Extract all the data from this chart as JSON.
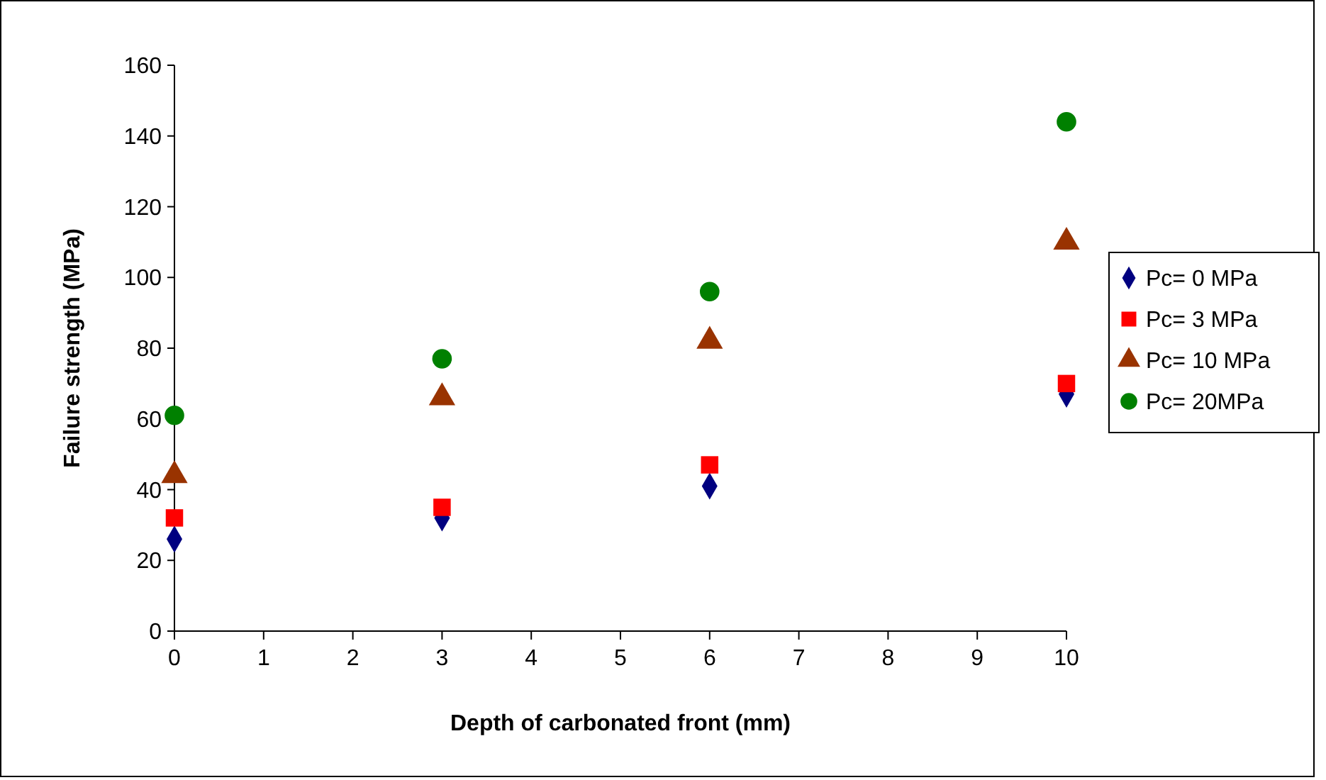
{
  "chart_data": {
    "type": "scatter",
    "xlabel": "Depth of carbonated front (mm)",
    "ylabel": "Failure strength (MPa)",
    "xlim": [
      0,
      10
    ],
    "xticks": [
      0,
      1,
      2,
      3,
      4,
      5,
      6,
      7,
      8,
      9,
      10
    ],
    "ylim": [
      0,
      160
    ],
    "yticks": [
      0,
      20,
      40,
      60,
      80,
      100,
      120,
      140,
      160
    ],
    "grid": false,
    "legend": "right",
    "series": [
      {
        "name": "Pc= 0 MPa",
        "color": "#000080",
        "marker": "diamond",
        "x": [
          0,
          3,
          6,
          10
        ],
        "values": [
          26,
          32,
          41,
          67
        ]
      },
      {
        "name": "Pc= 3 MPa",
        "color": "#ff0000",
        "marker": "square",
        "x": [
          0,
          3,
          6,
          10
        ],
        "values": [
          32,
          35,
          47,
          70
        ]
      },
      {
        "name": "Pc= 10 MPa",
        "color": "#993300",
        "marker": "triangle",
        "x": [
          0,
          3,
          6,
          10
        ],
        "values": [
          44,
          66,
          82,
          110
        ]
      },
      {
        "name": "Pc= 20MPa",
        "color": "#008000",
        "marker": "circle",
        "x": [
          0,
          3,
          6,
          10
        ],
        "values": [
          61,
          77,
          96,
          144
        ]
      }
    ]
  }
}
